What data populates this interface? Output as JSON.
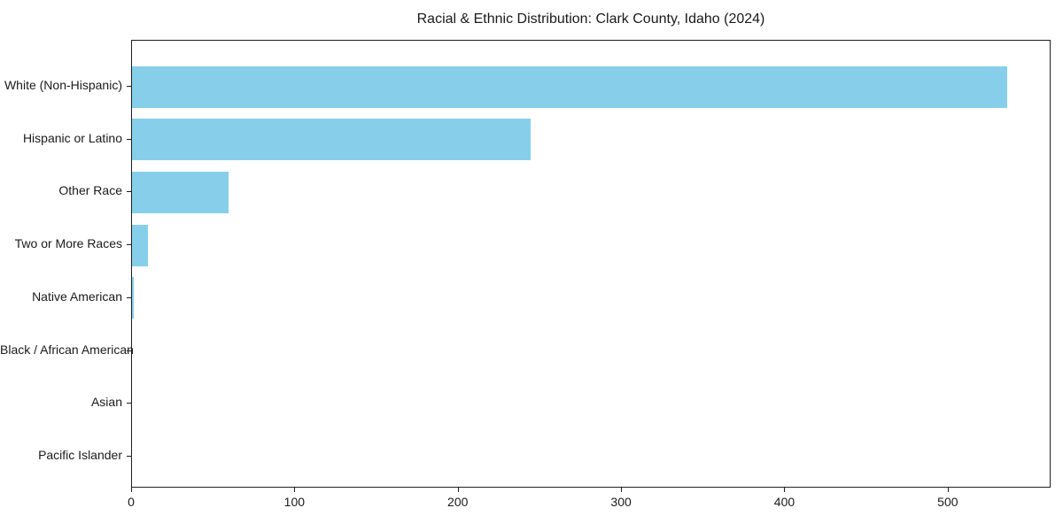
{
  "chart_data": {
    "type": "bar",
    "orientation": "horizontal",
    "title": "Racial & Ethnic Distribution: Clark County, Idaho (2024)",
    "categories": [
      "White (Non-Hispanic)",
      "Hispanic or Latino",
      "Other Race",
      "Two or More Races",
      "Native American",
      "Black / African American",
      "Asian",
      "Pacific Islander"
    ],
    "values": [
      536,
      244,
      59,
      10,
      1,
      0,
      0,
      0
    ],
    "bar_color": "#87CEEB",
    "x_ticks": [
      "0",
      "100",
      "200",
      "300",
      "400",
      "500"
    ],
    "x_tick_values": [
      0,
      100,
      200,
      300,
      400,
      500
    ],
    "xlim": [
      0,
      563
    ],
    "xlabel": "",
    "ylabel": "",
    "grid": false,
    "legend_position": "none",
    "frame_color": "#1f1f1f",
    "text_color": "#1a1a1a",
    "background_color": "#ffffff"
  }
}
